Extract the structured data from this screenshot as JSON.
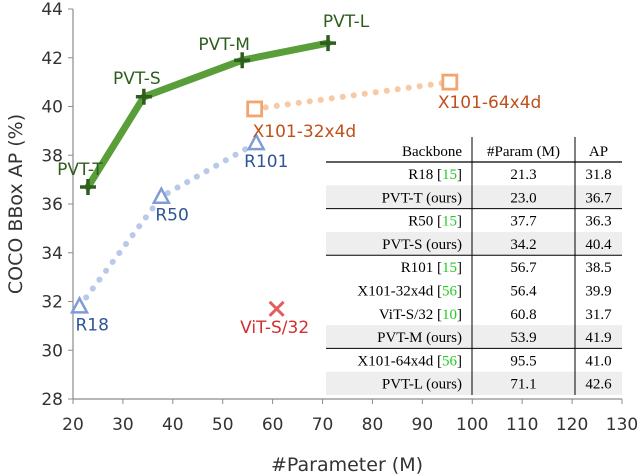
{
  "chart_data": {
    "type": "line",
    "xlabel": "#Parameter (M)",
    "ylabel": "COCO BBox AP (%)",
    "xlim": [
      20,
      130
    ],
    "ylim": [
      28,
      44
    ],
    "xticks": [
      20,
      30,
      40,
      50,
      60,
      70,
      80,
      90,
      100,
      110,
      120,
      130
    ],
    "yticks": [
      28,
      30,
      32,
      34,
      36,
      38,
      40,
      42,
      44
    ],
    "grid": false,
    "colors": {
      "pvt": "#5a9e3a",
      "pvt_marker": "#2e5e1e",
      "pvt_label": "#2e5e1e",
      "resnet": "#b9c9ea",
      "resnet_marker": "#7f9cd6",
      "resnet_label": "#2f5597",
      "resnext": "#f7c9a4",
      "resnext_marker": "#f4a46d",
      "resnext_label": "#c0501a",
      "vit": "#e06060",
      "vit_label": "#d03030",
      "table_highlight": "#eeeeee",
      "ref_green": "#22cc22"
    },
    "series": [
      {
        "key": "pvt",
        "line_style": "solid",
        "marker": "plus",
        "points": [
          {
            "x": 23.0,
            "y": 36.7,
            "label": "PVT-T"
          },
          {
            "x": 34.2,
            "y": 40.4,
            "label": "PVT-S"
          },
          {
            "x": 53.9,
            "y": 41.9,
            "label": "PVT-M"
          },
          {
            "x": 71.1,
            "y": 42.6,
            "label": "PVT-L"
          }
        ]
      },
      {
        "key": "resnet",
        "line_style": "dotted",
        "marker": "triangle",
        "points": [
          {
            "x": 21.3,
            "y": 31.8,
            "label": "R18"
          },
          {
            "x": 37.7,
            "y": 36.3,
            "label": "R50"
          },
          {
            "x": 56.7,
            "y": 38.5,
            "label": "R101"
          }
        ]
      },
      {
        "key": "resnext",
        "line_style": "dotted",
        "marker": "square",
        "points": [
          {
            "x": 56.4,
            "y": 39.9,
            "label": "X101-32x4d"
          },
          {
            "x": 95.5,
            "y": 41.0,
            "label": "X101-64x4d"
          }
        ]
      },
      {
        "key": "vit",
        "line_style": "none",
        "marker": "x",
        "points": [
          {
            "x": 60.8,
            "y": 31.7,
            "label": "ViT-S/32"
          }
        ]
      }
    ],
    "table": {
      "headers": [
        "Backbone",
        "#Param (M)",
        "AP"
      ],
      "rows": [
        {
          "backbone": "R18",
          "ref": "15",
          "param": "21.3",
          "ap": "31.8",
          "highlight": false
        },
        {
          "backbone": "PVT-T (ours)",
          "ref": "",
          "param": "23.0",
          "ap": "36.7",
          "highlight": true
        },
        {
          "backbone": "R50",
          "ref": "15",
          "param": "37.7",
          "ap": "36.3",
          "highlight": false
        },
        {
          "backbone": "PVT-S (ours)",
          "ref": "",
          "param": "34.2",
          "ap": "40.4",
          "highlight": true
        },
        {
          "backbone": "R101",
          "ref": "15",
          "param": "56.7",
          "ap": "38.5",
          "highlight": false
        },
        {
          "backbone": "X101-32x4d",
          "ref": "56",
          "param": "56.4",
          "ap": "39.9",
          "highlight": false
        },
        {
          "backbone": "ViT-S/32",
          "ref": "10",
          "param": "60.8",
          "ap": "31.7",
          "highlight": false
        },
        {
          "backbone": "PVT-M (ours)",
          "ref": "",
          "param": "53.9",
          "ap": "41.9",
          "highlight": true
        },
        {
          "backbone": "X101-64x4d",
          "ref": "56",
          "param": "95.5",
          "ap": "41.0",
          "highlight": false
        },
        {
          "backbone": "PVT-L (ours)",
          "ref": "",
          "param": "71.1",
          "ap": "42.6",
          "highlight": true
        }
      ],
      "group_ends": [
        1,
        3,
        7
      ]
    }
  }
}
